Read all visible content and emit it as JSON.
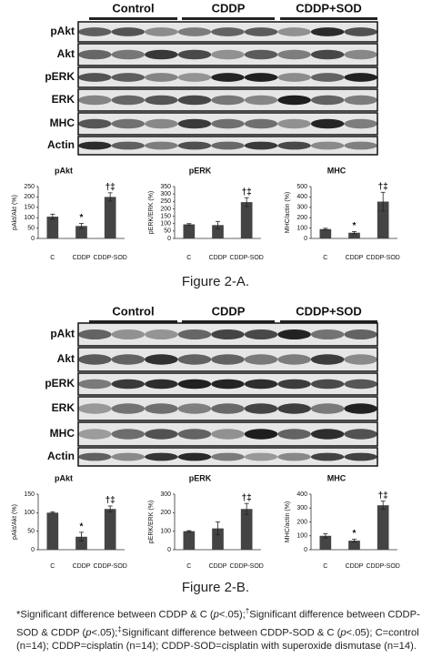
{
  "figures": [
    {
      "groups": [
        "Control",
        "CDDP",
        "CDDP+SOD"
      ],
      "rows": [
        "pAkt",
        "Akt",
        "pERK",
        "ERK",
        "MHC",
        "Actin"
      ],
      "caption": "Figure 2-A."
    },
    {
      "groups": [
        "Control",
        "CDDP",
        "CDDP+SOD"
      ],
      "rows": [
        "pAkt",
        "Akt",
        "pERK",
        "ERK",
        "MHC",
        "Actin"
      ],
      "caption": "Figure 2-B."
    }
  ],
  "chart_data": [
    {
      "type": "bar",
      "title": "pAkt",
      "y_label": "pAkt/Akt (%)",
      "categories": [
        "C",
        "CDDP",
        "CDDP-SOD"
      ],
      "values": [
        105,
        60,
        200
      ],
      "errors": [
        12,
        12,
        20
      ],
      "annotations": [
        null,
        "*",
        "†‡"
      ],
      "color": "#444444",
      "ylim": [
        0,
        250
      ],
      "yticks": [
        0,
        50,
        100,
        150,
        200,
        250
      ]
    },
    {
      "type": "bar",
      "title": "pERK",
      "y_label": "pERK/ERK (%)",
      "categories": [
        "C",
        "CDDP",
        "CDDP-SOD"
      ],
      "values": [
        95,
        90,
        245
      ],
      "errors": [
        5,
        25,
        30
      ],
      "annotations": [
        null,
        null,
        "†‡"
      ],
      "color": "#444444",
      "ylim": [
        0,
        350
      ],
      "yticks": [
        0,
        50,
        100,
        150,
        200,
        250,
        300,
        350
      ]
    },
    {
      "type": "bar",
      "title": "MHC",
      "y_label": "MHC/actin (%)",
      "categories": [
        "C",
        "CDDP",
        "CDDP-SOD"
      ],
      "values": [
        90,
        55,
        355
      ],
      "errors": [
        8,
        12,
        90
      ],
      "annotations": [
        null,
        "*",
        "†‡"
      ],
      "color": "#444444",
      "ylim": [
        0,
        500
      ],
      "yticks": [
        0,
        100,
        200,
        300,
        400,
        500
      ]
    },
    {
      "type": "bar",
      "title": "pAkt",
      "y_label": "pAkt/Akt (%)",
      "categories": [
        "C",
        "CDDP",
        "CDDP-SOD"
      ],
      "values": [
        100,
        35,
        110
      ],
      "errors": [
        2,
        12,
        8
      ],
      "annotations": [
        null,
        "*",
        "†‡"
      ],
      "color": "#444444",
      "ylim": [
        0,
        150
      ],
      "yticks": [
        0,
        50,
        100,
        150
      ]
    },
    {
      "type": "bar",
      "title": "pERK",
      "y_label": "pERK/ERK (%)",
      "categories": [
        "C",
        "CDDP",
        "CDDP-SOD"
      ],
      "values": [
        100,
        115,
        220
      ],
      "errors": [
        3,
        35,
        30
      ],
      "annotations": [
        null,
        null,
        "†‡"
      ],
      "color": "#444444",
      "ylim": [
        0,
        300
      ],
      "yticks": [
        0,
        100,
        200,
        300
      ]
    },
    {
      "type": "bar",
      "title": "MHC",
      "y_label": "MHC/actin (%)",
      "categories": [
        "C",
        "CDDP",
        "CDDP-SOD"
      ],
      "values": [
        100,
        65,
        320
      ],
      "errors": [
        15,
        10,
        30
      ],
      "annotations": [
        null,
        "*",
        "†‡"
      ],
      "color": "#444444",
      "ylim": [
        0,
        400
      ],
      "yticks": [
        0,
        100,
        200,
        300,
        400
      ]
    }
  ],
  "footnote": [
    "*Significant difference between CDDP & C (",
    "p",
    "<.05);",
    "†",
    "Significant difference between CDDP-SOD & CDDP (",
    "p",
    "<.05);",
    "‡",
    "Significant difference between CDDP-SOD & C (",
    "p",
    "<.05); C=control (n=14); CDDP=cisplatin (n=14); CDDP-SOD=cisplatin with superoxide dismutase (n=14)."
  ]
}
